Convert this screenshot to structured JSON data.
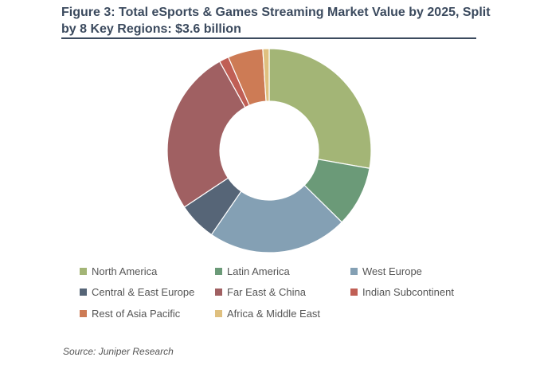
{
  "chart_data": {
    "type": "pie",
    "title": "Figure 3: Total eSports & Games Streaming Market Value by 2025, Split by 8 Key Regions: $3.6 billion",
    "donut": true,
    "categories": [
      "North America",
      "Latin America",
      "West Europe",
      "Central & East Europe",
      "Far East & China",
      "Indian Subcontinent",
      "Rest of Asia Pacific",
      "Africa & Middle East"
    ],
    "values": [
      27.5,
      9.5,
      22,
      6,
      26,
      1.5,
      5.5,
      1
    ],
    "colors": [
      "#a3b576",
      "#6b9a78",
      "#84a0b4",
      "#566577",
      "#a06062",
      "#c05f55",
      "#cd7b55",
      "#dfc07f"
    ],
    "legend_position": "bottom"
  },
  "source": "Source: Juniper Research"
}
